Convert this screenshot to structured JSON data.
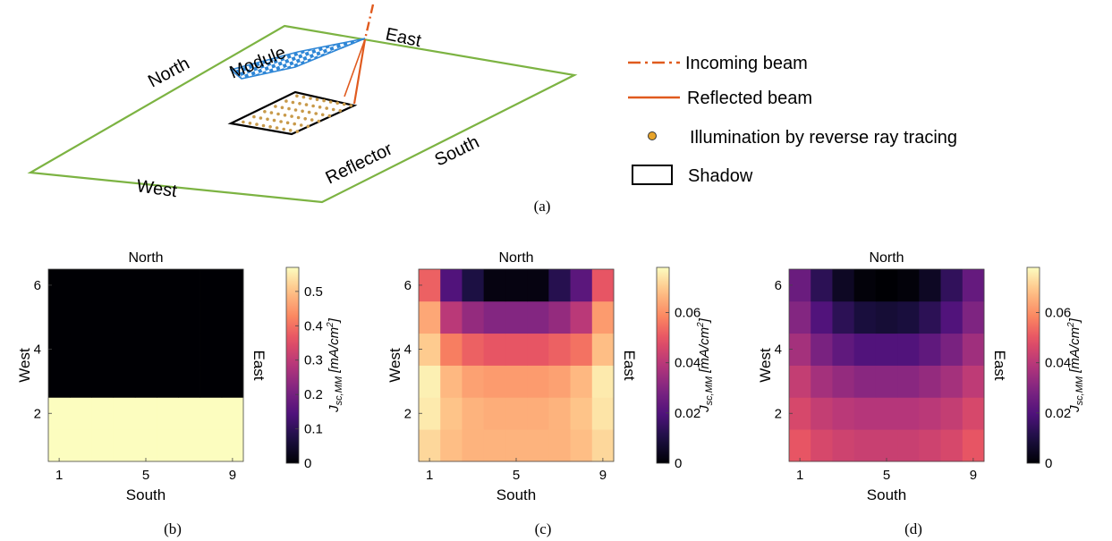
{
  "diagram": {
    "directions": {
      "north": "North",
      "east": "East",
      "south": "South",
      "west": "West"
    },
    "module_label": "Module",
    "reflector_label": "Reflector",
    "caption": "(a)",
    "legend": [
      {
        "key": "incoming",
        "label": "Incoming beam",
        "color": "#e05a1e"
      },
      {
        "key": "reflected",
        "label": "Reflected beam",
        "color": "#e05a1e"
      },
      {
        "key": "illumination",
        "label": "Illumination by reverse ray tracing",
        "color": "#e8a42a"
      },
      {
        "key": "shadow",
        "label": "Shadow",
        "color": "#000000"
      }
    ],
    "colors": {
      "ground": "#7cb342",
      "module": "#2e86d6",
      "beam": "#e05a1e",
      "dots": "#c89a4a"
    }
  },
  "chart_data": [
    {
      "type": "heatmap",
      "panel": "(b)",
      "title": "North",
      "xlabel": "South",
      "ylabel": "West",
      "right_label": "East",
      "colorbar_label": "J_{sc,MM} [mA/cm^2]",
      "x_ticks": [
        "1",
        "5",
        "9"
      ],
      "y_ticks": [
        "2",
        "4",
        "6"
      ],
      "colorbar_ticks": [
        "0",
        "0.1",
        "0.2",
        "0.3",
        "0.4",
        "0.5"
      ],
      "clim": [
        0,
        0.57
      ],
      "x": [
        1,
        2,
        3,
        4,
        5,
        6,
        7,
        8,
        9
      ],
      "y": [
        1,
        2,
        3,
        4,
        5,
        6
      ],
      "z": [
        [
          0.57,
          0.57,
          0.57,
          0.57,
          0.57,
          0.57,
          0.57,
          0.57,
          0.57
        ],
        [
          0.57,
          0.57,
          0.57,
          0.57,
          0.57,
          0.57,
          0.57,
          0.57,
          0.57
        ],
        [
          0,
          0,
          0,
          0,
          0,
          0,
          0,
          0,
          0
        ],
        [
          0,
          0,
          0,
          0,
          0,
          0,
          0,
          0,
          0
        ],
        [
          0,
          0,
          0,
          0,
          0,
          0,
          0,
          0,
          0
        ],
        [
          0,
          0,
          0,
          0,
          0,
          0,
          0,
          0,
          0
        ]
      ]
    },
    {
      "type": "heatmap",
      "panel": "(c)",
      "title": "North",
      "xlabel": "South",
      "ylabel": "West",
      "right_label": "East",
      "colorbar_label": "J_{sc,MM} [mA/cm^2]",
      "x_ticks": [
        "1",
        "5",
        "9"
      ],
      "y_ticks": [
        "2",
        "4",
        "6"
      ],
      "colorbar_ticks": [
        "0",
        "0.02",
        "0.04",
        "0.06"
      ],
      "clim": [
        0,
        0.078
      ],
      "x": [
        1,
        2,
        3,
        4,
        5,
        6,
        7,
        8,
        9
      ],
      "y": [
        1,
        2,
        3,
        4,
        5,
        6
      ],
      "z": [
        [
          0.072,
          0.068,
          0.066,
          0.066,
          0.066,
          0.066,
          0.066,
          0.068,
          0.072
        ],
        [
          0.075,
          0.069,
          0.066,
          0.065,
          0.065,
          0.065,
          0.066,
          0.069,
          0.074
        ],
        [
          0.076,
          0.067,
          0.063,
          0.062,
          0.062,
          0.062,
          0.063,
          0.067,
          0.075
        ],
        [
          0.07,
          0.057,
          0.052,
          0.05,
          0.05,
          0.05,
          0.052,
          0.055,
          0.068
        ],
        [
          0.064,
          0.04,
          0.033,
          0.03,
          0.03,
          0.03,
          0.033,
          0.04,
          0.062
        ],
        [
          0.052,
          0.02,
          0.01,
          0.002,
          0.002,
          0.002,
          0.012,
          0.022,
          0.05
        ]
      ]
    },
    {
      "type": "heatmap",
      "panel": "(d)",
      "title": "North",
      "xlabel": "South",
      "ylabel": "West",
      "right_label": "East",
      "colorbar_label": "J_{sc,MM} [mA/cm^2]",
      "x_ticks": [
        "1",
        "5",
        "9"
      ],
      "y_ticks": [
        "2",
        "4",
        "6"
      ],
      "colorbar_ticks": [
        "0",
        "0.02",
        "0.04",
        "0.06"
      ],
      "clim": [
        0,
        0.078
      ],
      "x": [
        1,
        2,
        3,
        4,
        5,
        6,
        7,
        8,
        9
      ],
      "y": [
        1,
        2,
        3,
        4,
        5,
        6
      ],
      "z": [
        [
          0.05,
          0.046,
          0.044,
          0.043,
          0.043,
          0.043,
          0.044,
          0.046,
          0.05
        ],
        [
          0.046,
          0.042,
          0.04,
          0.039,
          0.039,
          0.039,
          0.04,
          0.042,
          0.046
        ],
        [
          0.042,
          0.036,
          0.033,
          0.031,
          0.031,
          0.031,
          0.033,
          0.036,
          0.041
        ],
        [
          0.036,
          0.028,
          0.023,
          0.02,
          0.02,
          0.02,
          0.023,
          0.028,
          0.035
        ],
        [
          0.03,
          0.02,
          0.013,
          0.009,
          0.008,
          0.009,
          0.013,
          0.02,
          0.029
        ],
        [
          0.025,
          0.013,
          0.005,
          0.001,
          0.0,
          0.001,
          0.005,
          0.014,
          0.024
        ]
      ]
    }
  ]
}
